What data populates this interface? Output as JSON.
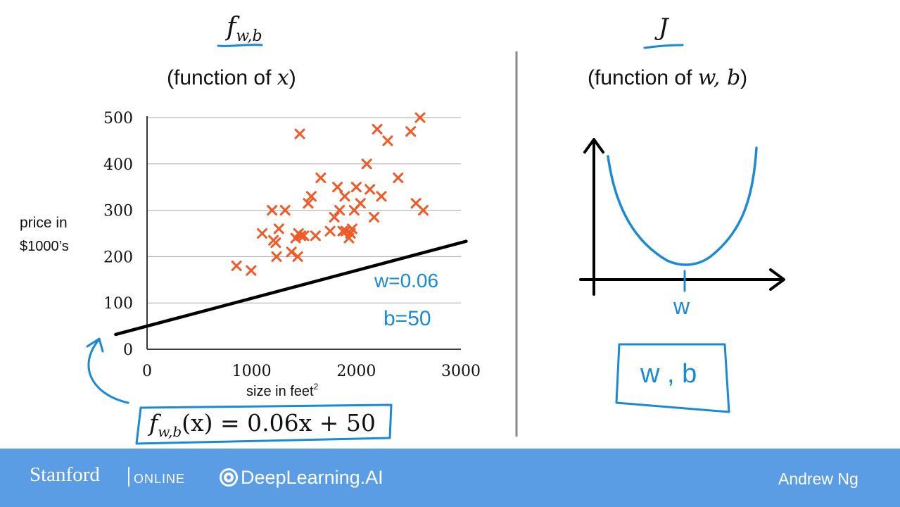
{
  "left_panel": {
    "heading_f": "f",
    "heading_f_subscript": "w,b",
    "subtitle_prefix": "(function of ",
    "subtitle_var": "x",
    "subtitle_suffix": ")",
    "formula": {
      "f": "f",
      "sub": "w,b",
      "rest": "(x) = 0.06x + 50"
    },
    "annotation_w": "w=0.06",
    "annotation_b": "b=50"
  },
  "right_panel": {
    "heading": "J",
    "subtitle_prefix": "(function of ",
    "subtitle_var": "w, b",
    "subtitle_suffix": ")",
    "axis_label_w": "w",
    "boxed_params": "w , b"
  },
  "chart_data": [
    {
      "type": "scatter",
      "title": "",
      "xlabel": "size in feet",
      "xlabel_superscript": "2",
      "ylabel_line1": "price in",
      "ylabel_line2": "$1000’s",
      "xlim": [
        0,
        3000
      ],
      "ylim": [
        0,
        500
      ],
      "x_ticks": [
        0,
        1000,
        2000,
        3000
      ],
      "y_ticks": [
        0,
        100,
        200,
        300,
        400,
        500
      ],
      "grid": "horizontal",
      "marker": "x",
      "marker_color": "#f05a28",
      "x": [
        855,
        995,
        1100,
        1195,
        1208,
        1230,
        1238,
        1260,
        1320,
        1380,
        1420,
        1440,
        1448,
        1460,
        1470,
        1500,
        1540,
        1570,
        1610,
        1660,
        1750,
        1790,
        1820,
        1840,
        1870,
        1890,
        1900,
        1930,
        1945,
        1960,
        1980,
        2000,
        2040,
        2100,
        2130,
        2170,
        2200,
        2240,
        2300,
        2400,
        2520,
        2570,
        2610,
        2640
      ],
      "y": [
        180,
        170,
        250,
        300,
        235,
        230,
        200,
        260,
        300,
        210,
        240,
        200,
        250,
        465,
        245,
        245,
        315,
        330,
        245,
        370,
        255,
        285,
        350,
        300,
        255,
        330,
        255,
        240,
        250,
        260,
        300,
        350,
        315,
        400,
        345,
        285,
        475,
        330,
        450,
        370,
        470,
        315,
        500,
        300
      ],
      "fit_line": {
        "w": 0.06,
        "b": 50,
        "x_range": [
          -300,
          3050
        ],
        "color": "#000000"
      }
    },
    {
      "type": "line",
      "title": "",
      "xlabel": "w",
      "ylabel": "",
      "description_curve": "U-shaped cost curve with minimum at w",
      "color": "#1a8ad4"
    }
  ],
  "footer": {
    "stanford": "Stanford",
    "online": "ONLINE",
    "deeplearning": "DeepLearning.AI",
    "instructor": "Andrew Ng",
    "bar_color": "#5a9de5"
  }
}
